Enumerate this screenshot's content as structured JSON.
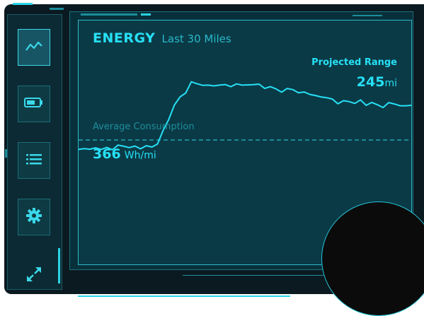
{
  "header": {
    "title": "ENERGY",
    "subtitle": "Last 30 Miles"
  },
  "projected_range": {
    "label": "Projected Range",
    "value": "245",
    "unit": "mi"
  },
  "average_consumption": {
    "label": "Average Consumption",
    "value": "366",
    "unit": "Wh/mi"
  },
  "sidebar": {
    "items": [
      {
        "icon": "line-chart-icon",
        "active": true
      },
      {
        "icon": "battery-icon",
        "active": false
      },
      {
        "icon": "list-icon",
        "active": false
      },
      {
        "icon": "gear-icon",
        "active": false
      }
    ],
    "expand_icon": "expand-arrows-icon"
  },
  "colors": {
    "accent": "#27e0f5",
    "panel": "#0a3a46",
    "background": "#0b1a20",
    "muted": "#1e8e9b"
  },
  "chart_data": {
    "type": "line",
    "title": "",
    "xlabel": "",
    "ylabel": "",
    "reference_line": {
      "label": "Average Consumption",
      "value": 366,
      "unit": "Wh/mi"
    },
    "series": [
      {
        "values": [
          318,
          322,
          319,
          326,
          318,
          328,
          316,
          340,
          334,
          327,
          335,
          321,
          337,
          330,
          345,
          415,
          471,
          544,
          585,
          605,
          662,
          652,
          644,
          645,
          641,
          645,
          648,
          637,
          651,
          645,
          646,
          647,
          650,
          628,
          637,
          626,
          609,
          628,
          622,
          606,
          610,
          598,
          592,
          585,
          581,
          574,
          550,
          566,
          561,
          552,
          570,
          542,
          557,
          545,
          531,
          556,
          549,
          540,
          540,
          542
        ]
      }
    ]
  }
}
